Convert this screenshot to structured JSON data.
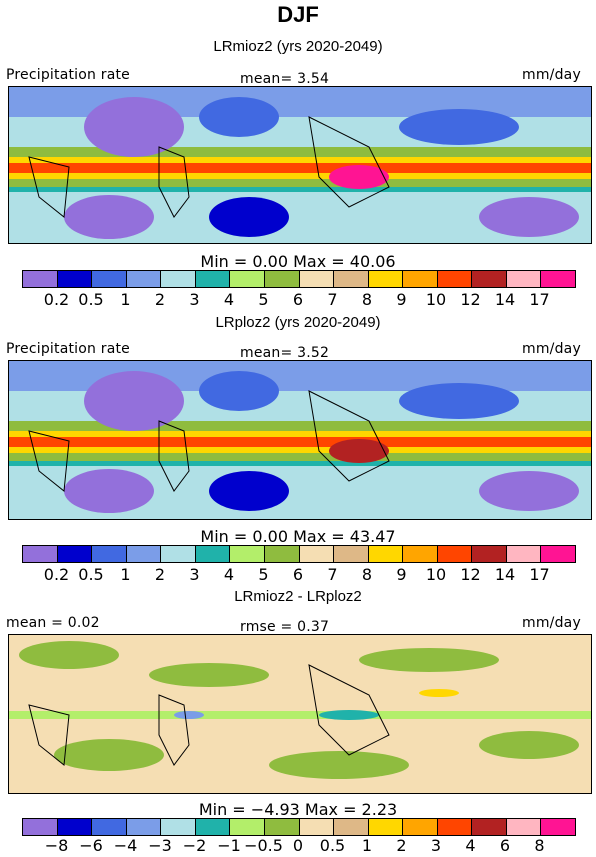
{
  "title": "DJF",
  "panels": [
    {
      "subtitle": "LRmioz2 (yrs 2020-2049)",
      "left_label": "Precipitation rate",
      "center_label": "mean=   3.54",
      "right_label": "mm/day",
      "minmax": "Min =    0.00 Max =   40.06",
      "ticks": [
        "0.2",
        "0.5",
        "1",
        "2",
        "3",
        "4",
        "5",
        "6",
        "7",
        "8",
        "9",
        "10",
        "12",
        "14",
        "17"
      ]
    },
    {
      "subtitle": "LRploz2 (yrs 2020-2049)",
      "left_label": "Precipitation rate",
      "center_label": "mean=   3.52",
      "right_label": "mm/day",
      "minmax": "Min =    0.00 Max =   43.47",
      "ticks": [
        "0.2",
        "0.5",
        "1",
        "2",
        "3",
        "4",
        "5",
        "6",
        "7",
        "8",
        "9",
        "10",
        "12",
        "14",
        "17"
      ]
    },
    {
      "subtitle": "LRmioz2 - LRploz2",
      "left_label": "mean =    0.02",
      "center_label": "rmse =    0.37",
      "right_label": "mm/day",
      "minmax": "Min =   −4.93 Max =    2.23",
      "ticks": [
        "−8",
        "−6",
        "−4",
        "−3",
        "−2",
        "−1",
        "−0.5",
        "0",
        "0.5",
        "1",
        "2",
        "3",
        "4",
        "6",
        "8"
      ]
    }
  ],
  "palette": [
    "#9370db",
    "#0000cd",
    "#4169e1",
    "#7b9de8",
    "#b0e0e6",
    "#20b2aa",
    "#b3ee6a",
    "#8fbc3f",
    "#f5deb3",
    "#deb887",
    "#ffd700",
    "#ffa500",
    "#ff4500",
    "#b22222",
    "#ffb6c1",
    "#ff1493"
  ]
}
